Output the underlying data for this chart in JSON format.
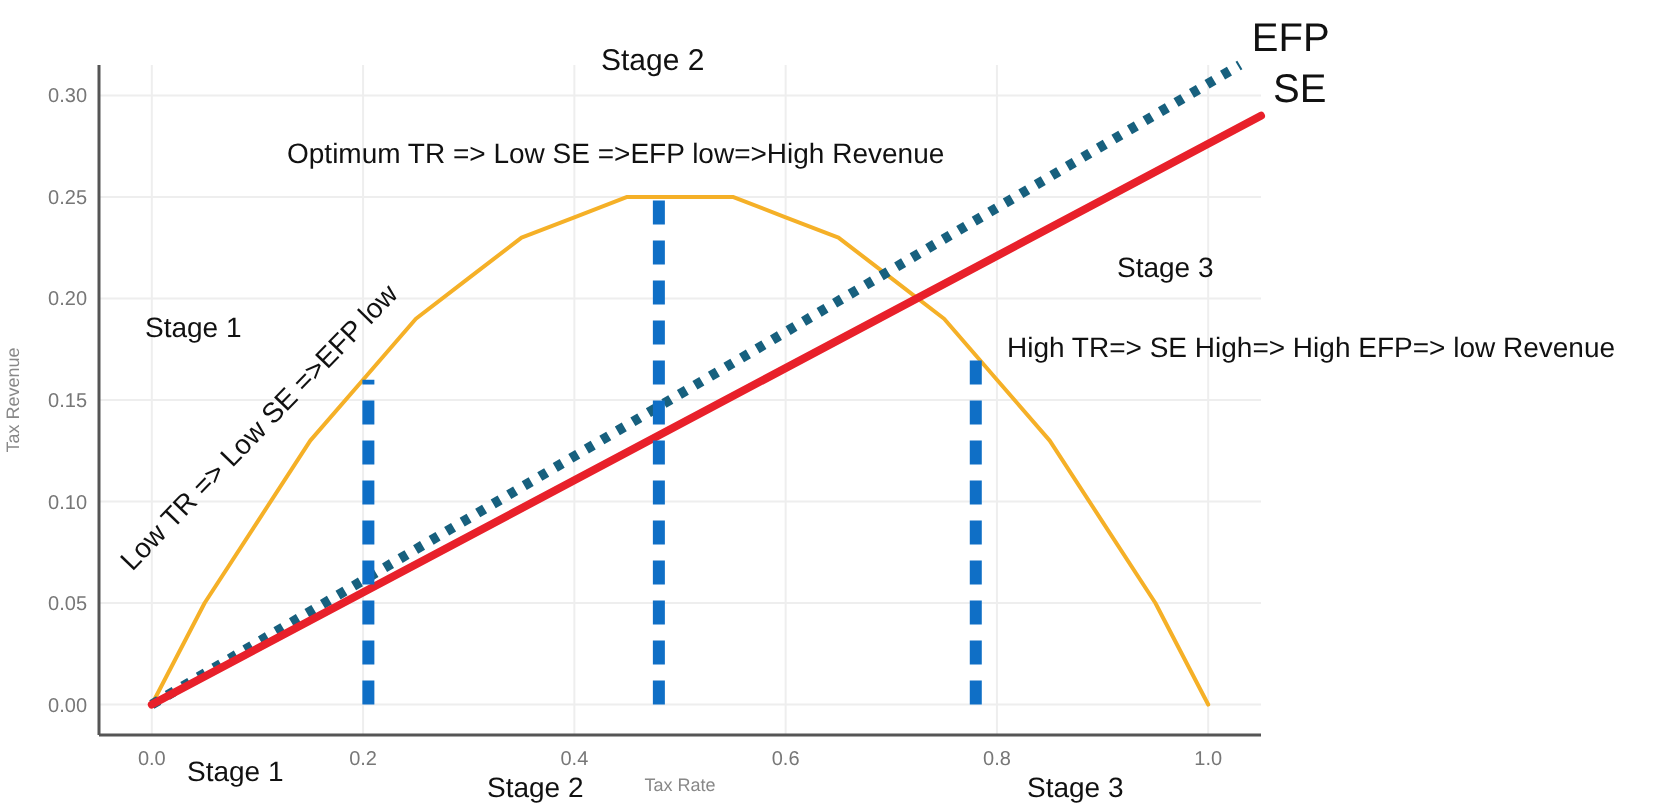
{
  "chart_data": {
    "type": "line",
    "xlabel": "Tax Rate",
    "ylabel": "Tax Revenue",
    "xlim": [
      -0.05,
      1.05
    ],
    "ylim": [
      -0.015,
      0.315
    ],
    "xticks": [
      {
        "value": 0,
        "label": "0.0"
      },
      0.2,
      0.4,
      0.6,
      0.8,
      {
        "value": 1,
        "label": "1.0"
      }
    ],
    "yticks": [
      {
        "value": 0,
        "label": "0.00"
      },
      {
        "value": 0.05,
        "label": "0.05"
      },
      {
        "value": 0.1,
        "label": "0.10"
      },
      {
        "value": 0.15,
        "label": "0.15"
      },
      {
        "value": 0.2,
        "label": "0.20"
      },
      {
        "value": 0.25,
        "label": "0.25"
      },
      {
        "value": 0.3,
        "label": "0.30"
      }
    ],
    "grid": true,
    "series": [
      {
        "color": "#f5b027",
        "line_style": "solid",
        "x": [
          0,
          0.05,
          0.1,
          0.15,
          0.2,
          0.25,
          0.3,
          0.35,
          0.4,
          0.45,
          0.5,
          0.55,
          0.6,
          0.65,
          0.7,
          0.75,
          0.8,
          0.85,
          0.9,
          0.95,
          1.0
        ],
        "values": [
          0,
          0.05,
          0.09,
          0.13,
          0.16,
          0.19,
          0.21,
          0.23,
          0.24,
          0.25,
          0.25,
          0.25,
          0.24,
          0.23,
          0.21,
          0.19,
          0.16,
          0.13,
          0.09,
          0.05,
          0
        ]
      },
      {
        "name": "EFP",
        "color": "#17607e",
        "line_style": "dotted",
        "x": [
          0,
          1.03
        ],
        "values": [
          0,
          0.315
        ]
      },
      {
        "name": "SE",
        "color": "#e8202a",
        "line_style": "solid",
        "x": [
          0,
          1.05
        ],
        "values": [
          0,
          0.29
        ]
      },
      {
        "color": "#0f6fc6",
        "line_style": "dashed",
        "x": [
          0.205,
          0.205
        ],
        "values": [
          0,
          0.16
        ]
      },
      {
        "color": "#0f6fc6",
        "line_style": "dashed",
        "x": [
          0.48,
          0.48
        ],
        "values": [
          0,
          0.25
        ]
      },
      {
        "color": "#0f6fc6",
        "line_style": "dashed",
        "x": [
          0.78,
          0.78
        ],
        "values": [
          0,
          0.17
        ]
      }
    ],
    "annotations": [
      "Stage 2",
      "Optimum TR => Low SE =>EFP low=>High Revenue",
      "Stage 1",
      "Low TR => Low SE =>EFP low",
      "Stage 3",
      "High TR=> SE High=> High EFP=> low Revenue",
      "Stage 1",
      "Stage 2",
      "Stage 3"
    ]
  }
}
